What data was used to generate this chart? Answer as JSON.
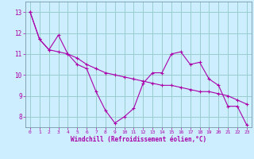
{
  "xlabel": "Windchill (Refroidissement éolien,°C)",
  "background_color": "#cceeff",
  "line_color": "#aa00aa",
  "grid_color": "#99cccc",
  "ylim": [
    7.5,
    13.5
  ],
  "xlim": [
    -0.5,
    23.5
  ],
  "yticks": [
    8,
    9,
    10,
    11,
    12,
    13
  ],
  "xticks": [
    0,
    1,
    2,
    3,
    4,
    5,
    6,
    7,
    8,
    9,
    10,
    11,
    12,
    13,
    14,
    15,
    16,
    17,
    18,
    19,
    20,
    21,
    22,
    23
  ],
  "line1_x": [
    0,
    1,
    2,
    3,
    4,
    5,
    6,
    7,
    8,
    9,
    10,
    11,
    12,
    13,
    14,
    15,
    16,
    17,
    18,
    19,
    20,
    21,
    22,
    23
  ],
  "line1_y": [
    13.0,
    11.7,
    11.2,
    11.9,
    11.0,
    10.5,
    10.3,
    9.2,
    8.3,
    7.7,
    8.0,
    8.4,
    9.6,
    10.1,
    10.1,
    11.0,
    11.1,
    10.5,
    10.6,
    9.8,
    9.5,
    8.5,
    8.5,
    7.6
  ],
  "line2_x": [
    0,
    1,
    2,
    3,
    4,
    5,
    6,
    7,
    8,
    9,
    10,
    11,
    12,
    13,
    14,
    15,
    16,
    17,
    18,
    19,
    20,
    21,
    22,
    23
  ],
  "line2_y": [
    13.0,
    11.7,
    11.2,
    11.1,
    11.0,
    10.8,
    10.5,
    10.3,
    10.1,
    10.0,
    9.9,
    9.8,
    9.7,
    9.6,
    9.5,
    9.5,
    9.4,
    9.3,
    9.2,
    9.2,
    9.1,
    9.0,
    8.8,
    8.6
  ]
}
